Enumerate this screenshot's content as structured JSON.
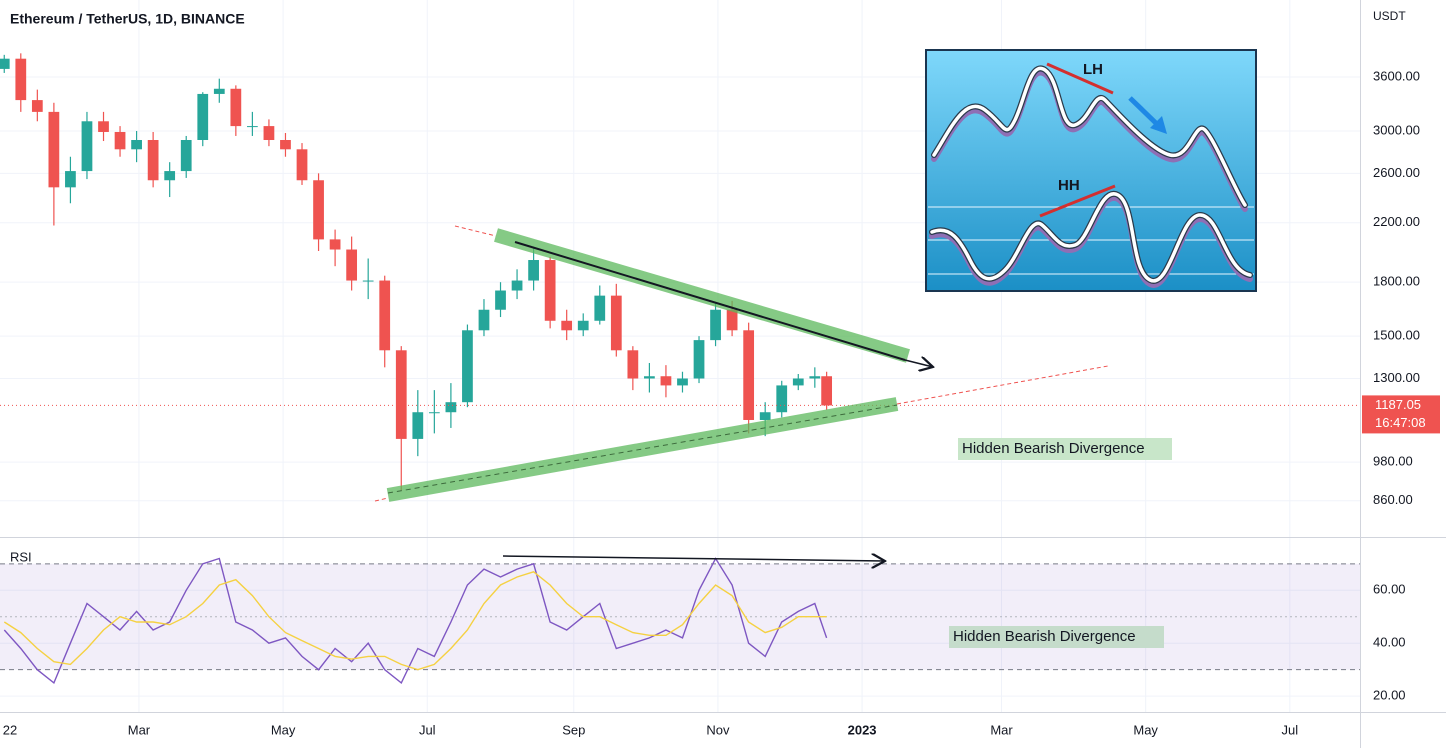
{
  "chart_data": [
    {
      "type": "candlestick",
      "title": "Ethereum / TetherUS, 1D, BINANCE",
      "y_axis_label": "USDT",
      "log_scale": true,
      "grid": true,
      "up_color": "#26a69a",
      "down_color": "#ef5350",
      "x": [
        2,
        9,
        16,
        23,
        30,
        37,
        44,
        51,
        58,
        65,
        72,
        79,
        86,
        93,
        100,
        107,
        114,
        121,
        128,
        135,
        142,
        149,
        156,
        163,
        170,
        177,
        184,
        191,
        198,
        205,
        212,
        219,
        226,
        233,
        240,
        247,
        254,
        261,
        268,
        275,
        282,
        289,
        296,
        303,
        310,
        317,
        324,
        331,
        338,
        345,
        350
      ],
      "open": [
        3700,
        3830,
        3330,
        3200,
        2480,
        2620,
        3100,
        2990,
        2820,
        2910,
        2540,
        2620,
        2910,
        3400,
        3460,
        3050,
        3050,
        2910,
        2820,
        2540,
        2080,
        2010,
        1810,
        1810,
        1430,
        1060,
        1160,
        1160,
        1200,
        1530,
        1640,
        1750,
        1810,
        1940,
        1580,
        1530,
        1580,
        1720,
        1430,
        1300,
        1310,
        1270,
        1300,
        1480,
        1640,
        1530,
        1130,
        1160,
        1270,
        1300,
        1310
      ],
      "high": [
        3880,
        3900,
        3450,
        3300,
        2750,
        3200,
        3200,
        3050,
        3000,
        2990,
        2700,
        2950,
        3420,
        3580,
        3500,
        3200,
        3120,
        2980,
        2880,
        2600,
        2150,
        2100,
        1950,
        1840,
        1450,
        1250,
        1250,
        1280,
        1560,
        1700,
        1800,
        1880,
        2030,
        1960,
        1640,
        1620,
        1780,
        1790,
        1450,
        1370,
        1360,
        1330,
        1500,
        1680,
        1690,
        1570,
        1200,
        1290,
        1320,
        1350,
        1330
      ],
      "low": [
        3650,
        3200,
        3100,
        2180,
        2350,
        2550,
        2900,
        2750,
        2700,
        2480,
        2400,
        2560,
        2850,
        3300,
        2950,
        2950,
        2850,
        2750,
        2500,
        2000,
        1900,
        1750,
        1700,
        1350,
        890,
        1000,
        1080,
        1100,
        1180,
        1500,
        1600,
        1700,
        1750,
        1540,
        1480,
        1500,
        1560,
        1400,
        1250,
        1240,
        1220,
        1240,
        1280,
        1450,
        1500,
        1080,
        1070,
        1140,
        1250,
        1260,
        1170
      ],
      "close": [
        3830,
        3330,
        3200,
        2480,
        2620,
        3100,
        2990,
        2820,
        2910,
        2540,
        2620,
        2910,
        3400,
        3460,
        3050,
        3050,
        2910,
        2820,
        2540,
        2080,
        2010,
        1810,
        1810,
        1430,
        1060,
        1160,
        1160,
        1200,
        1530,
        1640,
        1750,
        1810,
        1940,
        1580,
        1530,
        1580,
        1720,
        1430,
        1300,
        1310,
        1270,
        1300,
        1480,
        1640,
        1530,
        1130,
        1160,
        1270,
        1300,
        1310,
        1187.05
      ],
      "ylim": [
        761,
        4670
      ],
      "yticks": [
        {
          "value": 860,
          "label": "860.00"
        },
        {
          "value": 980,
          "label": "980.00"
        },
        {
          "value": 1300,
          "label": "1300.00"
        },
        {
          "value": 1500,
          "label": "1500.00"
        },
        {
          "value": 1800,
          "label": "1800.00"
        },
        {
          "value": 2200,
          "label": "2200.00"
        },
        {
          "value": 2600,
          "label": "2600.00"
        },
        {
          "value": 3000,
          "label": "3000.00"
        },
        {
          "value": 3600,
          "label": "3600.00"
        }
      ],
      "xlim": [
        0.2,
        575.7
      ],
      "xticks": [
        {
          "value": 0,
          "label": "22"
        },
        {
          "value": 59,
          "label": "Mar"
        },
        {
          "value": 120,
          "label": "May"
        },
        {
          "value": 181,
          "label": "Jul"
        },
        {
          "value": 243,
          "label": "Sep"
        },
        {
          "value": 304,
          "label": "Nov"
        },
        {
          "value": 365,
          "label": "2023"
        },
        {
          "value": 424,
          "label": "Mar"
        },
        {
          "value": 485,
          "label": "May"
        },
        {
          "value": 546,
          "label": "Jul"
        }
      ],
      "last_price": 1187.05,
      "countdown": "16:47:08",
      "annotations": [
        "Hidden Bearish Divergence"
      ],
      "inset": {
        "labels": [
          "LH",
          "HH"
        ]
      }
    },
    {
      "type": "line",
      "title": "RSI",
      "x": [
        2,
        9,
        16,
        23,
        30,
        37,
        44,
        51,
        58,
        65,
        72,
        79,
        86,
        93,
        100,
        107,
        114,
        121,
        128,
        135,
        142,
        149,
        156,
        163,
        170,
        177,
        184,
        191,
        198,
        205,
        212,
        219,
        226,
        233,
        240,
        247,
        254,
        261,
        268,
        275,
        282,
        289,
        296,
        303,
        310,
        317,
        324,
        331,
        338,
        345,
        350
      ],
      "series": [
        {
          "color": "#7e57c2",
          "values": [
            45,
            38,
            30,
            25,
            40,
            55,
            50,
            45,
            52,
            45,
            48,
            60,
            70,
            72,
            48,
            45,
            40,
            42,
            35,
            30,
            38,
            33,
            40,
            30,
            25,
            38,
            35,
            48,
            62,
            68,
            65,
            68,
            70,
            48,
            45,
            50,
            55,
            38,
            40,
            42,
            45,
            42,
            60,
            72,
            62,
            40,
            35,
            48,
            52,
            55,
            42
          ]
        },
        {
          "color": "#f5d142",
          "values": [
            48,
            44,
            38,
            33,
            32,
            38,
            45,
            50,
            48,
            48,
            47,
            50,
            55,
            62,
            64,
            58,
            50,
            44,
            41,
            38,
            35,
            34,
            35,
            35,
            32,
            30,
            32,
            38,
            45,
            55,
            62,
            65,
            67,
            62,
            55,
            50,
            50,
            47,
            44,
            43,
            43,
            47,
            55,
            62,
            58,
            48,
            44,
            46,
            50,
            50,
            50
          ]
        }
      ],
      "ylim": [
        14,
        79
      ],
      "yticks": [
        {
          "value": 20,
          "label": "20.00"
        },
        {
          "value": 40,
          "label": "40.00"
        },
        {
          "value": 60,
          "label": "60.00"
        }
      ],
      "bands": [
        30,
        70
      ],
      "midline": 50,
      "annotations": [
        "Hidden Bearish Divergence"
      ]
    }
  ]
}
